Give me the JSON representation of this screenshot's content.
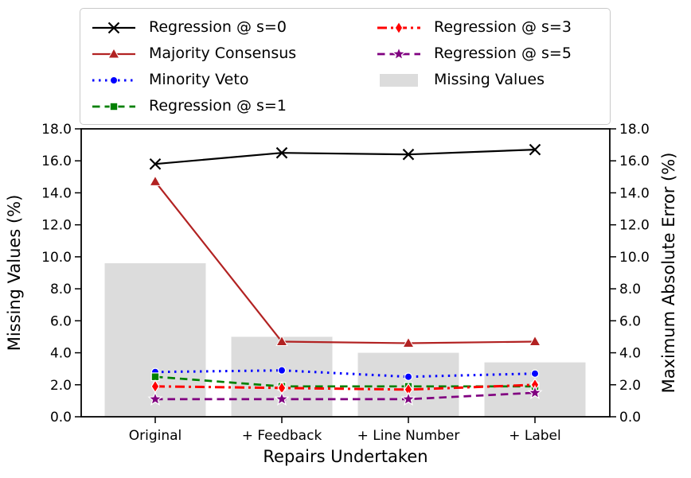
{
  "figure": {
    "background": "#ffffff",
    "spine_color": "#000000"
  },
  "axes": {
    "x": {
      "title": "Repairs Undertaken",
      "tick_labels": [
        "Original",
        "+ Feedback",
        "+ Line Number",
        "+ Label"
      ]
    },
    "y_left": {
      "title": "Missing Values (%)",
      "tick_labels": [
        "0.0",
        "2.0",
        "4.0",
        "6.0",
        "8.0",
        "10.0",
        "12.0",
        "14.0",
        "16.0",
        "18.0"
      ],
      "range": [
        0,
        18
      ]
    },
    "y_right": {
      "title": "Maximum Absolute Error (%)",
      "tick_labels": [
        "0.0",
        "2.0",
        "4.0",
        "6.0",
        "8.0",
        "10.0",
        "12.0",
        "14.0",
        "16.0",
        "18.0"
      ],
      "range": [
        0,
        18
      ]
    }
  },
  "chart_data": {
    "type": "line+bar",
    "categories": [
      "Original",
      "+ Feedback",
      "+ Line Number",
      "+ Label"
    ],
    "xlabel": "Repairs Undertaken",
    "ylabel_left": "Missing Values (%)",
    "ylabel_right": "Maximum Absolute Error (%)",
    "ylim": [
      0,
      18
    ],
    "grid": false,
    "legend_position": "top, 2 columns",
    "bars": {
      "name": "Missing Values",
      "axis": "left",
      "values": [
        9.6,
        5.0,
        4.0,
        3.4
      ],
      "color": "#dcdcdc"
    },
    "series": [
      {
        "name": "Regression @ s=0",
        "values": [
          15.8,
          16.5,
          16.4,
          16.7
        ],
        "color": "#000000",
        "line": "solid",
        "marker": "x"
      },
      {
        "name": "Majority Consensus",
        "values": [
          14.7,
          4.7,
          4.6,
          4.7
        ],
        "color": "#b22222",
        "line": "solid",
        "marker": "triangle-up"
      },
      {
        "name": "Minority Veto",
        "values": [
          2.8,
          2.9,
          2.5,
          2.7
        ],
        "color": "#0000ff",
        "line": "dotted",
        "marker": "circle"
      },
      {
        "name": "Regression @ s=1",
        "values": [
          2.5,
          1.9,
          1.9,
          1.9
        ],
        "color": "#008000",
        "line": "dashed",
        "marker": "square"
      },
      {
        "name": "Regression @ s=3",
        "values": [
          1.9,
          1.8,
          1.7,
          2.0
        ],
        "color": "#ff0000",
        "line": "dashdot",
        "marker": "thin-diamond"
      },
      {
        "name": "Regression @ s=5",
        "values": [
          1.1,
          1.1,
          1.1,
          1.5
        ],
        "color": "#800080",
        "line": "dashed",
        "marker": "star"
      }
    ],
    "legend_entries": [
      "Regression @ s=0",
      "Majority Consensus",
      "Minority Veto",
      "Regression @ s=1",
      "Regression @ s=3",
      "Regression @ s=5",
      "Missing Values"
    ]
  }
}
